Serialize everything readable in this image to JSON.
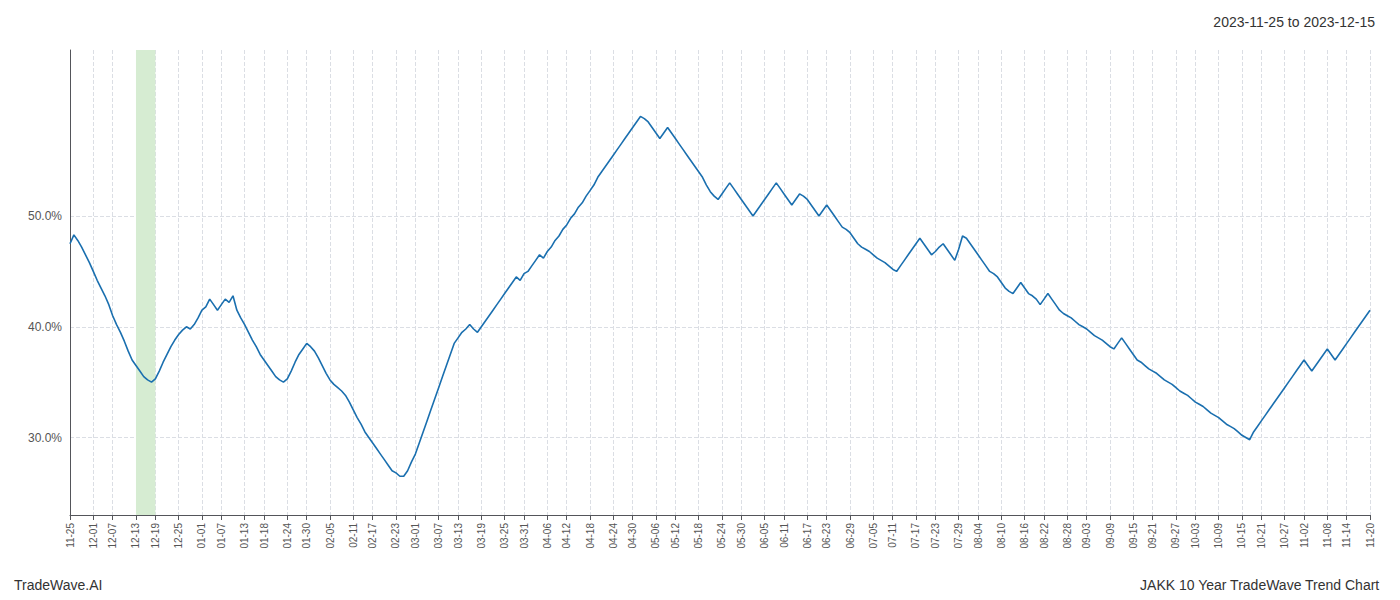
{
  "chart_data": {
    "type": "line",
    "title": "2023-11-25 to 2023-12-15",
    "annotations": [
      "TradeWave.AI",
      "JAKK 10 Year TradeWave Trend Chart"
    ],
    "color": "#1a6faf",
    "grid": true,
    "ylim": [
      23,
      65
    ],
    "yticks": [
      {
        "value": 30.0,
        "label": "30.0%"
      },
      {
        "value": 40.0,
        "label": "40.0%"
      },
      {
        "value": 50.0,
        "label": "50.0%"
      }
    ],
    "highlight": {
      "start": "12-13",
      "end": "12-19",
      "color": "#d6ecd2"
    },
    "categories": [
      "11-25",
      null,
      null,
      null,
      null,
      null,
      "12-01",
      null,
      null,
      null,
      null,
      "12-07",
      null,
      null,
      null,
      null,
      null,
      "12-13",
      null,
      null,
      null,
      null,
      "12-19",
      null,
      null,
      null,
      null,
      null,
      "12-25",
      null,
      null,
      null,
      null,
      null,
      "01-01",
      null,
      null,
      null,
      null,
      "01-07",
      null,
      null,
      null,
      null,
      null,
      "01-13",
      null,
      null,
      null,
      null,
      "01-18",
      null,
      null,
      null,
      null,
      null,
      "01-24",
      null,
      null,
      null,
      null,
      "01-30",
      null,
      null,
      null,
      null,
      null,
      "02-05",
      null,
      null,
      null,
      null,
      null,
      "02-11",
      null,
      null,
      null,
      null,
      "02-17",
      null,
      null,
      null,
      null,
      null,
      "02-23",
      null,
      null,
      null,
      null,
      "03-01",
      null,
      null,
      null,
      null,
      null,
      "03-07",
      null,
      null,
      null,
      null,
      "03-13",
      null,
      null,
      null,
      null,
      null,
      "03-19",
      null,
      null,
      null,
      null,
      null,
      "03-25",
      null,
      null,
      null,
      null,
      "03-31",
      null,
      null,
      null,
      null,
      null,
      "04-06",
      null,
      null,
      null,
      null,
      "04-12",
      null,
      null,
      null,
      null,
      null,
      "04-18",
      null,
      null,
      null,
      null,
      null,
      "04-24",
      null,
      null,
      null,
      null,
      "04-30",
      null,
      null,
      null,
      null,
      null,
      "05-06",
      null,
      null,
      null,
      null,
      "05-12",
      null,
      null,
      null,
      null,
      null,
      "05-18",
      null,
      null,
      null,
      null,
      null,
      "05-24",
      null,
      null,
      null,
      null,
      "05-30",
      null,
      null,
      null,
      null,
      null,
      "06-05",
      null,
      null,
      null,
      null,
      "06-11",
      null,
      null,
      null,
      null,
      null,
      "06-17",
      null,
      null,
      null,
      null,
      "06-23",
      null,
      null,
      null,
      null,
      null,
      "06-29",
      null,
      null,
      null,
      null,
      null,
      "07-05",
      null,
      null,
      null,
      null,
      "07-11",
      null,
      null,
      null,
      null,
      null,
      "07-17",
      null,
      null,
      null,
      null,
      "07-23",
      null,
      null,
      null,
      null,
      null,
      "07-29",
      null,
      null,
      null,
      null,
      "08-04",
      null,
      null,
      null,
      null,
      null,
      "08-10",
      null,
      null,
      null,
      null,
      null,
      "08-16",
      null,
      null,
      null,
      null,
      "08-22",
      null,
      null,
      null,
      null,
      null,
      "08-28",
      null,
      null,
      null,
      null,
      "09-03",
      null,
      null,
      null,
      null,
      null,
      "09-09",
      null,
      null,
      null,
      null,
      null,
      "09-15",
      null,
      null,
      null,
      null,
      "09-21",
      null,
      null,
      null,
      null,
      null,
      "09-27",
      null,
      null,
      null,
      null,
      "10-03",
      null,
      null,
      null,
      null,
      null,
      "10-09",
      null,
      null,
      null,
      null,
      null,
      "10-15",
      null,
      null,
      null,
      null,
      "10-21",
      null,
      null,
      null,
      null,
      null,
      "10-27",
      null,
      null,
      null,
      null,
      "11-02",
      null,
      null,
      null,
      null,
      null,
      "11-08",
      null,
      null,
      null,
      null,
      "11-14",
      null,
      null,
      null,
      null,
      null,
      "11-20"
    ],
    "values": [
      47.5,
      48.3,
      47.8,
      47.2,
      46.5,
      45.8,
      45.0,
      44.2,
      43.5,
      42.8,
      42.0,
      41.0,
      40.2,
      39.5,
      38.7,
      37.8,
      37.0,
      36.5,
      36.0,
      35.5,
      35.2,
      35.0,
      35.3,
      36.0,
      36.8,
      37.5,
      38.2,
      38.8,
      39.3,
      39.7,
      40.0,
      39.8,
      40.2,
      40.8,
      41.5,
      41.8,
      42.5,
      42.0,
      41.5,
      42.0,
      42.5,
      42.2,
      42.8,
      41.5,
      40.8,
      40.2,
      39.5,
      38.8,
      38.2,
      37.5,
      37.0,
      36.5,
      36.0,
      35.5,
      35.2,
      35.0,
      35.3,
      36.0,
      36.8,
      37.5,
      38.0,
      38.5,
      38.2,
      37.8,
      37.2,
      36.5,
      35.8,
      35.2,
      34.8,
      34.5,
      34.2,
      33.8,
      33.2,
      32.5,
      31.8,
      31.2,
      30.5,
      30.0,
      29.5,
      29.0,
      28.5,
      28.0,
      27.5,
      27.0,
      26.8,
      26.5,
      26.5,
      27.0,
      27.8,
      28.5,
      29.5,
      30.5,
      31.5,
      32.5,
      33.5,
      34.5,
      35.5,
      36.5,
      37.5,
      38.5,
      39.0,
      39.5,
      39.8,
      40.2,
      39.8,
      39.5,
      40.0,
      40.5,
      41.0,
      41.5,
      42.0,
      42.5,
      43.0,
      43.5,
      44.0,
      44.5,
      44.2,
      44.8,
      45.0,
      45.5,
      46.0,
      46.5,
      46.2,
      46.8,
      47.2,
      47.8,
      48.2,
      48.8,
      49.2,
      49.8,
      50.2,
      50.8,
      51.2,
      51.8,
      52.3,
      52.8,
      53.5,
      54.0,
      54.5,
      55.0,
      55.5,
      56.0,
      56.5,
      57.0,
      57.5,
      58.0,
      58.5,
      59.0,
      58.8,
      58.5,
      58.0,
      57.5,
      57.0,
      57.5,
      58.0,
      57.5,
      57.0,
      56.5,
      56.0,
      55.5,
      55.0,
      54.5,
      54.0,
      53.5,
      52.8,
      52.2,
      51.8,
      51.5,
      52.0,
      52.5,
      53.0,
      52.5,
      52.0,
      51.5,
      51.0,
      50.5,
      50.0,
      50.5,
      51.0,
      51.5,
      52.0,
      52.5,
      53.0,
      52.5,
      52.0,
      51.5,
      51.0,
      51.5,
      52.0,
      51.8,
      51.5,
      51.0,
      50.5,
      50.0,
      50.5,
      51.0,
      50.5,
      50.0,
      49.5,
      49.0,
      48.8,
      48.5,
      48.0,
      47.5,
      47.2,
      47.0,
      46.8,
      46.5,
      46.2,
      46.0,
      45.8,
      45.5,
      45.2,
      45.0,
      45.5,
      46.0,
      46.5,
      47.0,
      47.5,
      48.0,
      47.5,
      47.0,
      46.5,
      46.8,
      47.2,
      47.5,
      47.0,
      46.5,
      46.0,
      47.0,
      48.2,
      48.0,
      47.5,
      47.0,
      46.5,
      46.0,
      45.5,
      45.0,
      44.8,
      44.5,
      44.0,
      43.5,
      43.2,
      43.0,
      43.5,
      44.0,
      43.5,
      43.0,
      42.8,
      42.5,
      42.0,
      42.5,
      43.0,
      42.5,
      42.0,
      41.5,
      41.2,
      41.0,
      40.8,
      40.5,
      40.2,
      40.0,
      39.8,
      39.5,
      39.2,
      39.0,
      38.8,
      38.5,
      38.2,
      38.0,
      38.5,
      39.0,
      38.5,
      38.0,
      37.5,
      37.0,
      36.8,
      36.5,
      36.2,
      36.0,
      35.8,
      35.5,
      35.2,
      35.0,
      34.8,
      34.5,
      34.2,
      34.0,
      33.8,
      33.5,
      33.2,
      33.0,
      32.8,
      32.5,
      32.2,
      32.0,
      31.8,
      31.5,
      31.2,
      31.0,
      30.8,
      30.5,
      30.2,
      30.0,
      29.8,
      30.5,
      31.0,
      31.5,
      32.0,
      32.5,
      33.0,
      33.5,
      34.0,
      34.5,
      35.0,
      35.5,
      36.0,
      36.5,
      37.0,
      36.5,
      36.0,
      36.5,
      37.0,
      37.5,
      38.0,
      37.5,
      37.0,
      37.5,
      38.0,
      38.5,
      39.0,
      39.5,
      40.0,
      40.5,
      41.0,
      41.5
    ]
  }
}
